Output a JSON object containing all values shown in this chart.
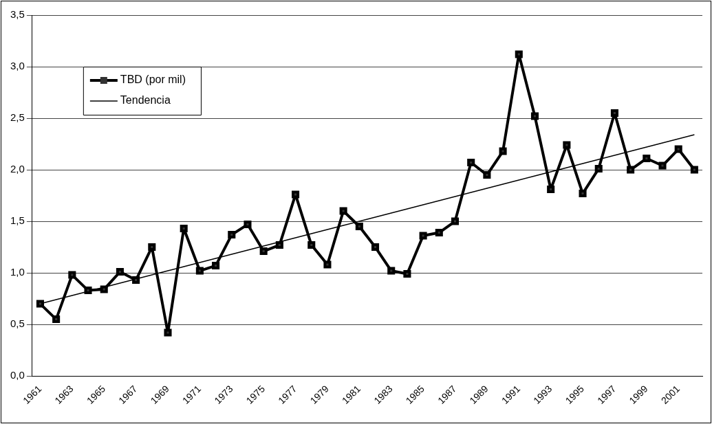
{
  "chart_data": {
    "type": "line",
    "categories": [
      "1961",
      null,
      "1963",
      null,
      "1965",
      null,
      "1967",
      null,
      "1969",
      null,
      "1971",
      null,
      "1973",
      null,
      "1975",
      null,
      "1977",
      null,
      "1979",
      null,
      "1981",
      null,
      "1983",
      null,
      "1985",
      null,
      "1987",
      null,
      "1989",
      null,
      "1991",
      null,
      "1993",
      null,
      "1995",
      null,
      "1997",
      null,
      "1999",
      null,
      "2001",
      null
    ],
    "series": [
      {
        "name": "TBD (por mil)",
        "color": "#000000",
        "marker": "square",
        "values": [
          0.7,
          0.55,
          0.98,
          0.83,
          0.84,
          1.01,
          0.93,
          1.25,
          0.42,
          1.43,
          1.02,
          1.07,
          1.37,
          1.47,
          1.21,
          1.27,
          1.76,
          1.27,
          1.08,
          1.6,
          1.45,
          1.25,
          1.02,
          0.99,
          1.36,
          1.39,
          1.5,
          2.07,
          1.95,
          2.18,
          3.12,
          2.52,
          1.81,
          2.24,
          1.77,
          2.01,
          2.55,
          2.0,
          2.11,
          2.04,
          2.2,
          2.0
        ]
      },
      {
        "name": "Tendencia",
        "color": "#000000",
        "marker": "none",
        "values": [
          0.7,
          0.74,
          0.78,
          0.82,
          0.86,
          0.9,
          0.94,
          0.98,
          1.02,
          1.06,
          1.1,
          1.14,
          1.18,
          1.22,
          1.26,
          1.3,
          1.34,
          1.38,
          1.42,
          1.46,
          1.5,
          1.54,
          1.58,
          1.62,
          1.66,
          1.7,
          1.74,
          1.78,
          1.82,
          1.86,
          1.9,
          1.94,
          1.98,
          2.02,
          2.06,
          2.1,
          2.14,
          2.18,
          2.22,
          2.26,
          2.3,
          2.34
        ]
      }
    ],
    "ylim": [
      0,
      3.5
    ],
    "yticks": [
      {
        "value": 0,
        "label": "0,0"
      },
      {
        "value": 0.5,
        "label": "0,5"
      },
      {
        "value": 1,
        "label": "1,0"
      },
      {
        "value": 1.5,
        "label": "1,5"
      },
      {
        "value": 2,
        "label": "2,0"
      },
      {
        "value": 2.5,
        "label": "2,5"
      },
      {
        "value": 3,
        "label": "3,0"
      },
      {
        "value": 3.5,
        "label": "3,5"
      }
    ],
    "grid": "y",
    "legend": "top left"
  }
}
